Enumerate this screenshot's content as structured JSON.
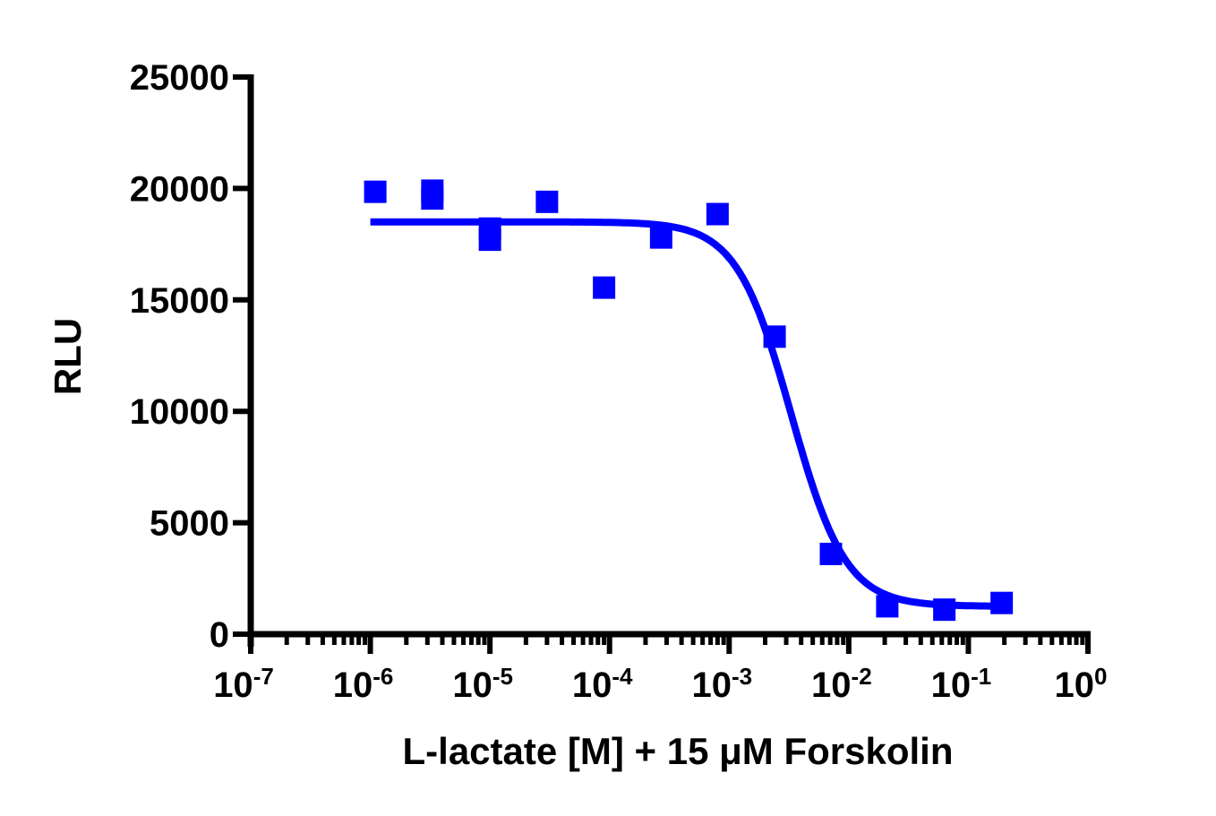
{
  "chart_data": {
    "type": "scatter",
    "title": "",
    "xlabel": "L-lactate [M] + 15 μM Forskolin",
    "ylabel": "RLU",
    "xscale": "log",
    "xlim": [
      1e-07,
      1
    ],
    "ylim": [
      0,
      25000
    ],
    "grid": false,
    "legend": null,
    "x_ticks": [
      {
        "base": "10",
        "exp": "-7",
        "value": 1e-07
      },
      {
        "base": "10",
        "exp": "-6",
        "value": 1e-06
      },
      {
        "base": "10",
        "exp": "-5",
        "value": 1e-05
      },
      {
        "base": "10",
        "exp": "-4",
        "value": 0.0001
      },
      {
        "base": "10",
        "exp": "-3",
        "value": 0.001
      },
      {
        "base": "10",
        "exp": "-2",
        "value": 0.01
      },
      {
        "base": "10",
        "exp": "-1",
        "value": 0.1
      },
      {
        "base": "10",
        "exp": "0",
        "value": 1
      }
    ],
    "y_ticks": [
      "0",
      "5000",
      "10000",
      "15000",
      "20000",
      "25000"
    ],
    "series": [
      {
        "name": "L-lactate",
        "color": "#0000ff",
        "marker": "square",
        "points": [
          {
            "x": 1.1e-06,
            "y": 19850
          },
          {
            "x": 3.3e-06,
            "y": 19900
          },
          {
            "x": 3.3e-06,
            "y": 19550
          },
          {
            "x": 1e-05,
            "y": 18200
          },
          {
            "x": 1e-05,
            "y": 17700
          },
          {
            "x": 3e-05,
            "y": 19400
          },
          {
            "x": 9e-05,
            "y": 15550
          },
          {
            "x": 0.00027,
            "y": 17800
          },
          {
            "x": 0.0008,
            "y": 18850
          },
          {
            "x": 0.0024,
            "y": 13350
          },
          {
            "x": 0.0071,
            "y": 3600
          },
          {
            "x": 0.021,
            "y": 1250
          },
          {
            "x": 0.063,
            "y": 1100
          },
          {
            "x": 0.19,
            "y": 1400
          }
        ],
        "fit": {
          "model": "sigmoidal dose-response (4PL)",
          "top": 18500,
          "bottom": 1250,
          "ic50": 0.0033,
          "hill_slope": -1.9,
          "x_range": [
            1e-06,
            0.2
          ]
        }
      }
    ]
  }
}
